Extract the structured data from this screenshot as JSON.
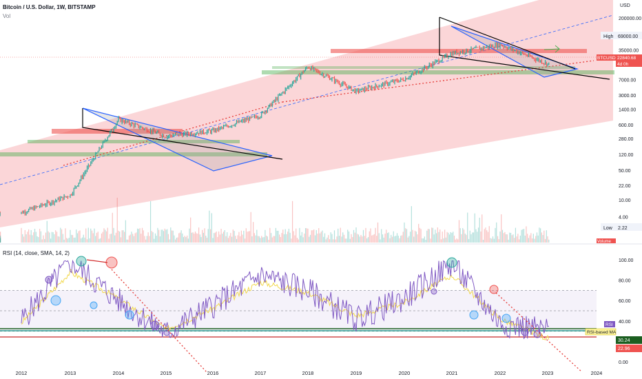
{
  "header": {
    "title": "Bitcoin / U.S. Dollar, 1W, BITSTAMP",
    "volume_label": "Vol",
    "rsi_title": "RSI (14, close, SMA, 14, 2)"
  },
  "price_axis": {
    "currency": "USD",
    "ticks": [
      "200000.00",
      "69000.00",
      "35000.00",
      "7000.00",
      "3000.00",
      "1400.00",
      "600.00",
      "280.00",
      "120.00",
      "50.00",
      "22.00",
      "10.00",
      "4.00",
      "2.22"
    ],
    "high_label": "High",
    "high_value": "69000.00",
    "low_label": "Low",
    "low_value": "2.22",
    "symbol_tag": "BTCUSD",
    "current_price": "22840.68",
    "countdown": "4d 0h",
    "volume_tag": "Volume"
  },
  "rsi_axis": {
    "ticks": [
      "100.00",
      "80.00",
      "60.00",
      "40.00",
      "20.00",
      "0.00"
    ],
    "rsi_tag": "RSI",
    "ma_tag": "RSI-based MA",
    "rsi_value": "30.24",
    "ma_value": "22.96"
  },
  "time_axis": {
    "labels": [
      "2012",
      "2013",
      "2014",
      "2015",
      "2016",
      "2017",
      "2018",
      "2019",
      "2020",
      "2021",
      "2022",
      "2023",
      "2024"
    ]
  },
  "colors": {
    "up": "#26a69a",
    "down": "#ef5350",
    "channel": "#f8b4b8",
    "rsi_line": "#7e57c2",
    "rsi_ma": "#f2d84b",
    "wedge": "#2962ff",
    "trend_dotted": "#e53935",
    "support_green": "#4caf50"
  },
  "chart_data": [
    {
      "type": "line",
      "title": "Bitcoin / U.S. Dollar, 1W, BITSTAMP",
      "scale": "log",
      "ylabel": "USD",
      "x": [
        "2012",
        "2013",
        "2014",
        "2015",
        "2016",
        "2017",
        "2018",
        "2019",
        "2020",
        "2021",
        "2022",
        "2023"
      ],
      "series": [
        {
          "name": "BTCUSD",
          "values": [
            5,
            13,
            800,
            320,
            430,
            1000,
            14000,
            3700,
            7200,
            29000,
            47000,
            16500
          ]
        }
      ],
      "annotations": {
        "all_time_high": 69000,
        "all_time_low": 2.22,
        "last_price": 22840.68
      }
    },
    {
      "type": "line",
      "title": "RSI (14, close, SMA, 14, 2)",
      "x": [
        "2012",
        "2013",
        "2014",
        "2015",
        "2016",
        "2017",
        "2018",
        "2019",
        "2020",
        "2021",
        "2022",
        "2023"
      ],
      "ylim": [
        0,
        100
      ],
      "series": [
        {
          "name": "RSI",
          "values": [
            40,
            98,
            60,
            28,
            55,
            85,
            70,
            42,
            62,
            96,
            38,
            30.24
          ]
        },
        {
          "name": "RSI-based MA",
          "values": [
            38,
            88,
            62,
            32,
            52,
            78,
            68,
            45,
            58,
            85,
            42,
            22.96
          ]
        }
      ]
    }
  ]
}
